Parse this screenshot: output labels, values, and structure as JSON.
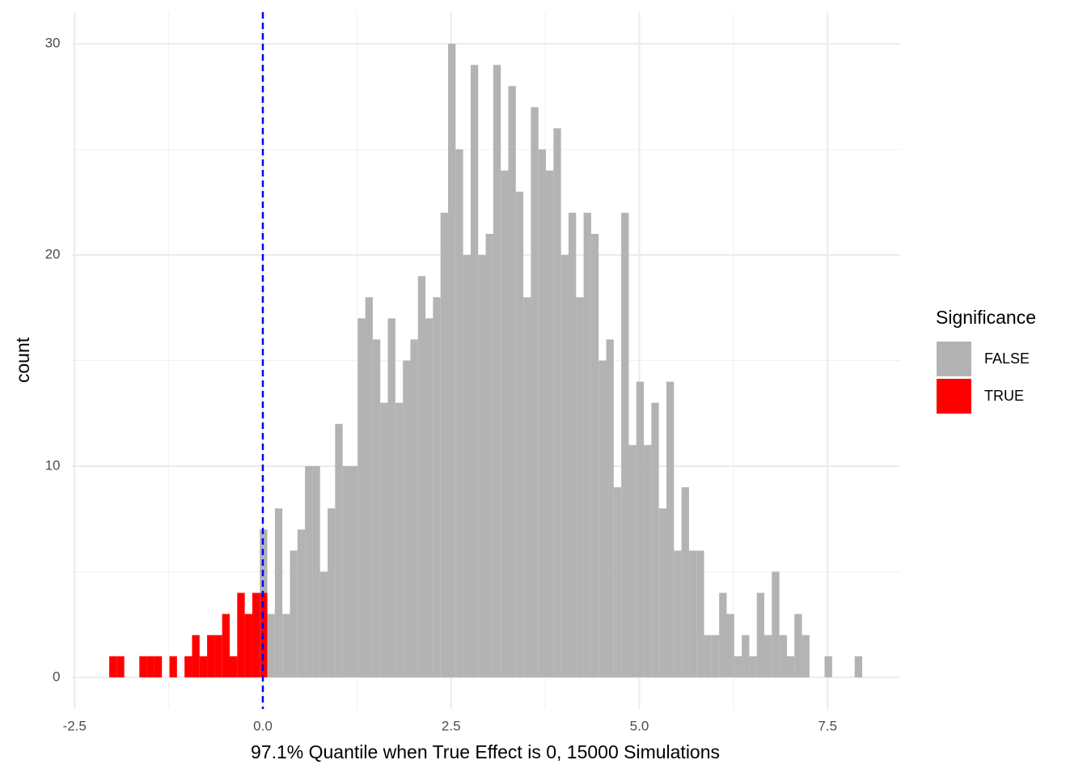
{
  "chart_data": {
    "type": "histogram",
    "x_label": "97.1% Quantile when True Effect is 0, 15000 Simulations",
    "y_label": "count",
    "legend_title": "Significance",
    "legend_position": "right",
    "grid": true,
    "bins": [
      -2.04,
      -1.94,
      -1.84,
      -1.74,
      -1.64,
      -1.54,
      -1.44,
      -1.34,
      -1.24,
      -1.14,
      -1.04,
      -0.94,
      -0.84,
      -0.74,
      -0.64,
      -0.54,
      -0.44,
      -0.34,
      -0.24,
      -0.14,
      -0.04,
      0.06,
      0.16,
      0.26,
      0.36,
      0.46,
      0.56,
      0.66,
      0.76,
      0.86,
      0.96,
      1.06,
      1.16,
      1.26,
      1.36,
      1.46,
      1.56,
      1.66,
      1.76,
      1.86,
      1.96,
      2.06,
      2.16,
      2.26,
      2.36,
      2.46,
      2.56,
      2.66,
      2.76,
      2.86,
      2.96,
      3.06,
      3.16,
      3.26,
      3.36,
      3.46,
      3.56,
      3.66,
      3.76,
      3.86,
      3.96,
      4.06,
      4.16,
      4.26,
      4.36,
      4.46,
      4.56,
      4.66,
      4.76,
      4.86,
      4.96,
      5.06,
      5.16,
      5.26,
      5.36,
      5.46,
      5.56,
      5.66,
      5.76,
      5.86,
      5.96,
      6.06,
      6.16,
      6.26,
      6.36,
      6.46,
      6.56,
      6.66,
      6.76,
      6.86,
      6.96,
      7.06,
      7.16,
      7.26,
      7.36,
      7.46,
      7.56,
      7.66,
      7.76,
      7.86,
      7.96
    ],
    "series": [
      {
        "name": "TRUE",
        "color": "#ff0000",
        "values": [
          1,
          1,
          0,
          0,
          1,
          1,
          1,
          0,
          1,
          0,
          1,
          2,
          1,
          2,
          2,
          3,
          1,
          4,
          3,
          4,
          4,
          0,
          0,
          0,
          0,
          0,
          0,
          0,
          0,
          0,
          0,
          0,
          0,
          0,
          0,
          0,
          0,
          0,
          0,
          0,
          0,
          0,
          0,
          0,
          0,
          0,
          0,
          0,
          0,
          0,
          0,
          0,
          0,
          0,
          0,
          0,
          0,
          0,
          0,
          0,
          0,
          0,
          0,
          0,
          0,
          0,
          0,
          0,
          0,
          0,
          0,
          0,
          0,
          0,
          0,
          0,
          0,
          0,
          0,
          0,
          0,
          0,
          0,
          0,
          0,
          0,
          0,
          0,
          0,
          0,
          0,
          0,
          0,
          0,
          0,
          0,
          0,
          0,
          0,
          0
        ]
      },
      {
        "name": "FALSE",
        "color": "#b3b3b3",
        "values": [
          0,
          0,
          0,
          0,
          0,
          0,
          0,
          0,
          0,
          0,
          0,
          0,
          0,
          0,
          0,
          0,
          0,
          0,
          0,
          0,
          3,
          3,
          8,
          3,
          6,
          7,
          10,
          10,
          5,
          8,
          12,
          10,
          10,
          17,
          18,
          16,
          13,
          17,
          13,
          15,
          16,
          19,
          17,
          18,
          22,
          30,
          25,
          20,
          29,
          20,
          21,
          29,
          24,
          28,
          23,
          18,
          27,
          25,
          24,
          26,
          20,
          22,
          18,
          22,
          21,
          15,
          16,
          9,
          22,
          11,
          14,
          11,
          13,
          8,
          14,
          6,
          9,
          6,
          6,
          2,
          2,
          4,
          3,
          1,
          2,
          1,
          4,
          2,
          5,
          2,
          1,
          3,
          2,
          0,
          0,
          1,
          0,
          0,
          0,
          1
        ]
      }
    ],
    "vline": {
      "x": 0,
      "color": "#0000ff"
    },
    "xlim": [
      -2.54,
      8.46
    ],
    "ylim": [
      -1.5,
      31.5
    ],
    "xticks": [
      {
        "value": -2.5,
        "label": "-2.5"
      },
      {
        "value": 0,
        "label": "0.0"
      },
      {
        "value": 2.5,
        "label": "2.5"
      },
      {
        "value": 5,
        "label": "5.0"
      },
      {
        "value": 7.5,
        "label": "7.5"
      }
    ],
    "yticks": [
      0,
      10,
      20,
      30
    ]
  }
}
